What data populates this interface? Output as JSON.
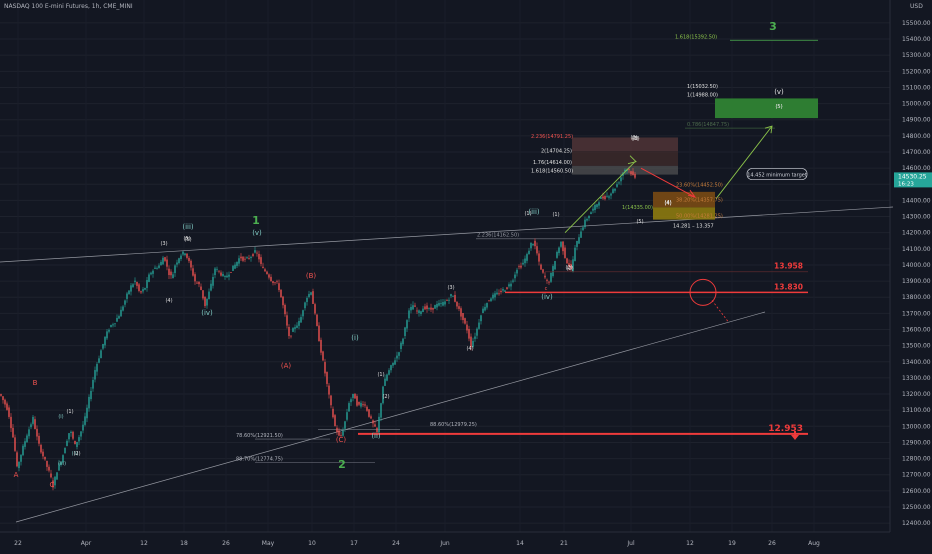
{
  "title": "NASDAQ 100 E-mini Futures, 1h, CME_MINI",
  "currency": "USD",
  "colors": {
    "background": "#131722",
    "candle_up": "#26a69a",
    "candle_down": "#ef5350",
    "wave_green": "#4caf50",
    "wave_red": "#ef5350",
    "wave_teal": "#80cbc4",
    "wave_white": "#e0e0e0",
    "level_red": "#ef3b3b",
    "gray_line": "#787b86"
  },
  "chart_data": {
    "type": "candlestick",
    "x_ticks": [
      "22",
      "Apr",
      "12",
      "18",
      "26",
      "May",
      "10",
      "17",
      "24",
      "Jun",
      "14",
      "21",
      "Jul",
      "12",
      "19",
      "26",
      "Aug"
    ],
    "y_ticks": [
      12400,
      12500,
      12600,
      12700,
      12800,
      12900,
      13000,
      13100,
      13200,
      13300,
      13400,
      13500,
      13600,
      13700,
      13800,
      13900,
      14000,
      14100,
      14200,
      14300,
      14400,
      14500,
      14600,
      14700,
      14800,
      14900,
      15000,
      15100,
      15200,
      15300,
      15400,
      15500
    ],
    "ylim": [
      12345,
      15580
    ],
    "last_price": {
      "price": "14530.25",
      "sub": "16:23",
      "value": 14530.25
    },
    "path": [
      [
        0,
        13200
      ],
      [
        8,
        13100
      ],
      [
        14,
        12900
      ],
      [
        17,
        12740
      ],
      [
        22,
        12850
      ],
      [
        27,
        12950
      ],
      [
        33,
        13050
      ],
      [
        38,
        12900
      ],
      [
        44,
        12800
      ],
      [
        50,
        12700
      ],
      [
        53,
        12630
      ],
      [
        58,
        12750
      ],
      [
        62,
        12800
      ],
      [
        66,
        12900
      ],
      [
        70,
        12980
      ],
      [
        75,
        12880
      ],
      [
        80,
        12950
      ],
      [
        85,
        13050
      ],
      [
        90,
        13200
      ],
      [
        95,
        13350
      ],
      [
        100,
        13450
      ],
      [
        105,
        13550
      ],
      [
        110,
        13620
      ],
      [
        115,
        13650
      ],
      [
        120,
        13700
      ],
      [
        125,
        13780
      ],
      [
        130,
        13860
      ],
      [
        135,
        13900
      ],
      [
        140,
        13820
      ],
      [
        145,
        13860
      ],
      [
        150,
        13950
      ],
      [
        155,
        13980
      ],
      [
        160,
        14000
      ],
      [
        164,
        14060
      ],
      [
        168,
        13960
      ],
      [
        172,
        13920
      ],
      [
        175,
        14000
      ],
      [
        180,
        14060
      ],
      [
        185,
        14080
      ],
      [
        190,
        14000
      ],
      [
        195,
        13900
      ],
      [
        200,
        13870
      ],
      [
        205,
        13750
      ],
      [
        210,
        13850
      ],
      [
        215,
        13980
      ],
      [
        220,
        13950
      ],
      [
        225,
        13920
      ],
      [
        230,
        13960
      ],
      [
        235,
        14000
      ],
      [
        240,
        14050
      ],
      [
        245,
        14030
      ],
      [
        250,
        14050
      ],
      [
        255,
        14080
      ],
      [
        258,
        14060
      ],
      [
        262,
        13980
      ],
      [
        267,
        13950
      ],
      [
        272,
        13900
      ],
      [
        278,
        13880
      ],
      [
        284,
        13720
      ],
      [
        289,
        13550
      ],
      [
        295,
        13620
      ],
      [
        300,
        13650
      ],
      [
        305,
        13780
      ],
      [
        311,
        13840
      ],
      [
        316,
        13650
      ],
      [
        320,
        13500
      ],
      [
        325,
        13330
      ],
      [
        330,
        13150
      ],
      [
        335,
        13000
      ],
      [
        340,
        12920
      ],
      [
        344,
        13000
      ],
      [
        349,
        13150
      ],
      [
        354,
        13200
      ],
      [
        358,
        13120
      ],
      [
        362,
        13150
      ],
      [
        366,
        13120
      ],
      [
        370,
        13050
      ],
      [
        374,
        13000
      ],
      [
        377,
        12960
      ],
      [
        380,
        13100
      ],
      [
        383,
        13250
      ],
      [
        387,
        13320
      ],
      [
        392,
        13380
      ],
      [
        398,
        13450
      ],
      [
        403,
        13550
      ],
      [
        408,
        13700
      ],
      [
        413,
        13750
      ],
      [
        418,
        13700
      ],
      [
        424,
        13740
      ],
      [
        430,
        13720
      ],
      [
        436,
        13750
      ],
      [
        442,
        13760
      ],
      [
        447,
        13780
      ],
      [
        452,
        13820
      ],
      [
        457,
        13750
      ],
      [
        463,
        13660
      ],
      [
        467,
        13600
      ],
      [
        471,
        13500
      ],
      [
        476,
        13580
      ],
      [
        481,
        13700
      ],
      [
        486,
        13760
      ],
      [
        491,
        13800
      ],
      [
        497,
        13820
      ],
      [
        502,
        13840
      ],
      [
        507,
        13860
      ],
      [
        512,
        13900
      ],
      [
        517,
        13980
      ],
      [
        522,
        14000
      ],
      [
        527,
        14060
      ],
      [
        532,
        14150
      ],
      [
        536,
        14100
      ],
      [
        540,
        13980
      ],
      [
        545,
        13920
      ],
      [
        548,
        13880
      ],
      [
        552,
        13960
      ],
      [
        557,
        14080
      ],
      [
        561,
        14140
      ],
      [
        566,
        14030
      ],
      [
        571,
        13970
      ],
      [
        575,
        14100
      ],
      [
        580,
        14200
      ],
      [
        585,
        14270
      ],
      [
        590,
        14320
      ],
      [
        595,
        14360
      ],
      [
        600,
        14410
      ],
      [
        605,
        14420
      ],
      [
        610,
        14440
      ],
      [
        615,
        14480
      ],
      [
        620,
        14530
      ],
      [
        624,
        14590
      ],
      [
        628,
        14600
      ],
      [
        632,
        14560
      ],
      [
        636,
        14530
      ]
    ]
  },
  "annotations": {
    "fib_labels": [
      {
        "text": "1.618(15392.50)",
        "price": 15392.5
      },
      {
        "text": "1(15032.50)",
        "price": 15085
      },
      {
        "text": "1(14988.00)",
        "price": 15030
      },
      {
        "text": "0.786(14847.75)",
        "price": 14847.75
      },
      {
        "text": "2.236(14791.25)",
        "price": 14775
      },
      {
        "text": "2(14704.25)",
        "price": 14685
      },
      {
        "text": "1.76(14614.00)",
        "price": 14614
      },
      {
        "text": "1.618(14560.50)",
        "price": 14560.5
      },
      {
        "text": "23.60%(14452.50)",
        "price": 14475
      },
      {
        "text": "38.20%(14357.75)",
        "price": 14380
      },
      {
        "text": "1(14335.00)",
        "price": 14335
      },
      {
        "text": "50.00%(14281.25)",
        "price": 14281.25
      },
      {
        "text": "14.281 – 13.357",
        "price": 14220
      },
      {
        "text": "2.236(14162.50)",
        "price": 14162.5
      },
      {
        "text": "88.60%(12979.25)",
        "price": 12990
      },
      {
        "text": "78.60%(12921.50)",
        "price": 12921.5
      },
      {
        "text": "88.70%(12774.75)",
        "price": 12774.75
      }
    ],
    "callout": "14.452 minimum target",
    "levels": [
      {
        "text": "13.958",
        "price": 13958
      },
      {
        "text": "13.830",
        "price": 13830
      },
      {
        "text": "12.953",
        "price": 12953
      }
    ],
    "wave_labels": [
      {
        "text": "3",
        "color": "green",
        "size": "lg"
      },
      {
        "text": "1",
        "color": "green",
        "size": "lg"
      },
      {
        "text": "2",
        "color": "green",
        "size": "lg"
      },
      {
        "text": "(iii)",
        "color": "teal",
        "size": "md"
      },
      {
        "text": "(iv)",
        "color": "teal",
        "size": "md"
      },
      {
        "text": "(v)",
        "color": "teal",
        "size": "md"
      },
      {
        "text": "(i)",
        "color": "teal",
        "size": "md"
      },
      {
        "text": "(ii)",
        "color": "teal",
        "size": "md"
      },
      {
        "text": "(iii)",
        "color": "teal",
        "size": "md"
      },
      {
        "text": "(iv)",
        "color": "teal",
        "size": "md"
      },
      {
        "text": "(i)",
        "color": "teal",
        "size": "sm"
      },
      {
        "text": "(ii)",
        "color": "teal",
        "size": "sm"
      },
      {
        "text": "(iii)",
        "color": "teal",
        "size": "sm"
      },
      {
        "text": "(v)",
        "color": "white",
        "size": "md"
      },
      {
        "text": "A",
        "color": "red",
        "size": "md"
      },
      {
        "text": "B",
        "color": "red",
        "size": "md"
      },
      {
        "text": "C",
        "color": "red",
        "size": "md"
      },
      {
        "text": "(A)",
        "color": "red",
        "size": "md"
      },
      {
        "text": "(B)",
        "color": "red",
        "size": "md"
      },
      {
        "text": "(C)",
        "color": "red",
        "size": "md"
      },
      {
        "text": "c",
        "color": "red",
        "size": "sm"
      },
      {
        "text": "(1)",
        "color": "white",
        "size": "sm"
      },
      {
        "text": "(2)",
        "color": "white",
        "size": "sm"
      },
      {
        "text": "(3)",
        "color": "white",
        "size": "sm"
      },
      {
        "text": "(4)",
        "color": "white",
        "size": "sm"
      },
      {
        "text": "(5)",
        "color": "white",
        "size": "sm"
      },
      {
        "text": "(3)",
        "color": "white",
        "size": "sm"
      },
      {
        "text": "(4)",
        "color": "white",
        "size": "sm"
      },
      {
        "text": "(5)",
        "color": "white",
        "size": "sm"
      },
      {
        "text": "(1)",
        "color": "white",
        "size": "sm"
      },
      {
        "text": "(2)",
        "color": "white",
        "size": "sm"
      },
      {
        "text": "(3)",
        "color": "white",
        "size": "sm"
      },
      {
        "text": "(4)",
        "color": "white",
        "size": "sm"
      },
      {
        "text": "(5)",
        "color": "white",
        "size": "sm"
      },
      {
        "text": "(1)",
        "color": "white",
        "size": "sm"
      },
      {
        "text": "(2)",
        "color": "white",
        "size": "sm"
      },
      {
        "text": "(3)",
        "color": "white",
        "size": "sm"
      },
      {
        "text": "(4)",
        "color": "white",
        "size": "sm"
      },
      {
        "text": "(5)",
        "color": "white",
        "size": "sm"
      },
      {
        "text": "(1)",
        "color": "white",
        "size": "sm"
      },
      {
        "text": "(2)",
        "color": "white",
        "size": "sm"
      },
      {
        "text": "(3)",
        "color": "white",
        "size": "sm"
      },
      {
        "text": "(4)",
        "color": "white",
        "size": "sm"
      },
      {
        "text": "(5)",
        "color": "white",
        "size": "sm"
      }
    ]
  }
}
